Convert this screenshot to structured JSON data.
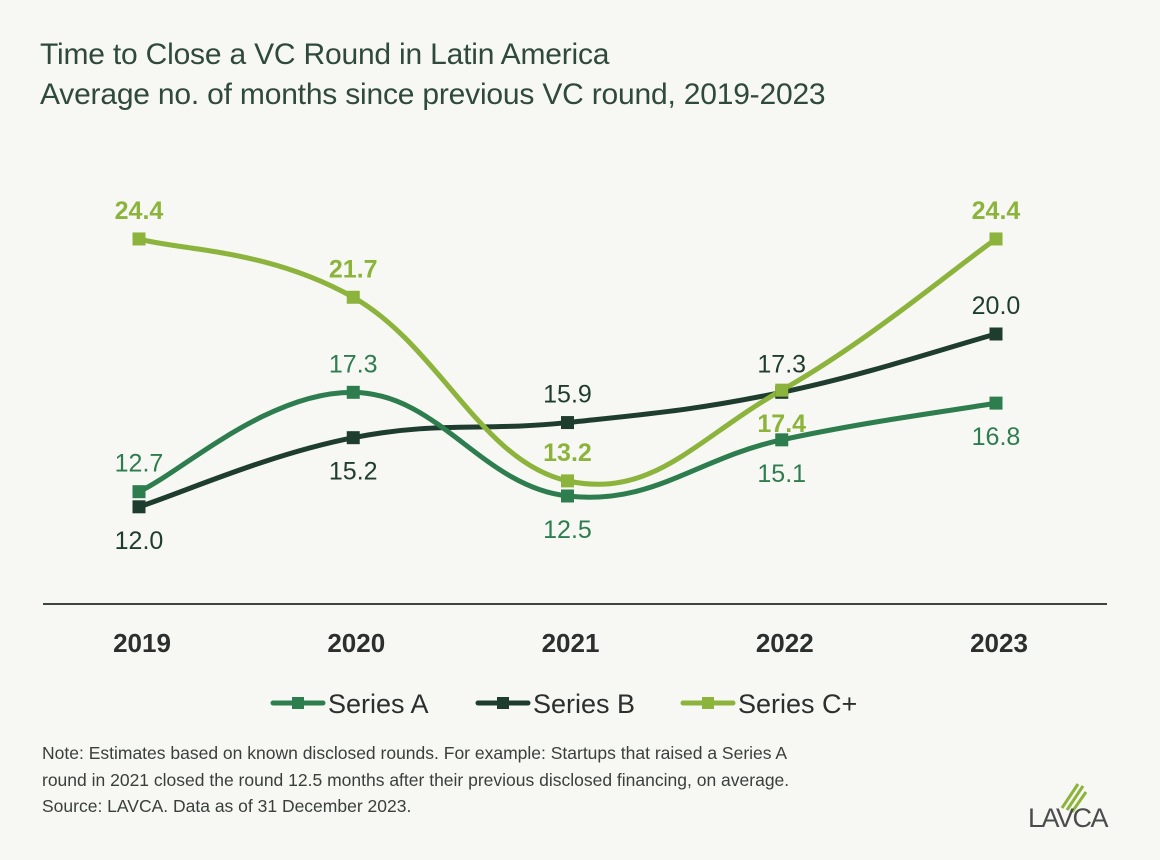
{
  "title": "Time to Close a VC Round in Latin America",
  "subtitle": "Average no. of months since previous VC round, 2019-2023",
  "notes": [
    "Note: Estimates based on known disclosed rounds. For example: Startups that raised a Series A",
    "round in 2021 closed the round 12.5 months after their previous disclosed financing, on average.",
    "Source: LAVCA. Data as of 31 December 2023."
  ],
  "logo": {
    "text": "LAVCA",
    "icon": "lavca-logo-icon"
  },
  "colors": {
    "series_a": "#2e7d4f",
    "series_b": "#1f3d2e",
    "series_c": "#8cb43c",
    "text": "#2f4a3c",
    "axis": "#3a3f3c"
  },
  "chart_data": {
    "type": "line",
    "title": "Time to Close a VC Round in Latin America",
    "subtitle": "Average no. of months since previous VC round, 2019-2023",
    "xlabel": "",
    "ylabel": "",
    "categories": [
      "2019",
      "2020",
      "2021",
      "2022",
      "2023"
    ],
    "ylim": [
      0,
      30
    ],
    "grid": false,
    "legend": "bottom-center",
    "series": [
      {
        "name": "Series A",
        "key": "series_a",
        "values": [
          12.7,
          17.3,
          12.5,
          15.1,
          16.8
        ],
        "labels": [
          "12.7",
          "17.3",
          "12.5",
          "15.1",
          "16.8"
        ],
        "label_pos": [
          "above",
          "above",
          "below",
          "below",
          "below"
        ]
      },
      {
        "name": "Series B",
        "key": "series_b",
        "values": [
          12.0,
          15.2,
          15.9,
          17.3,
          20.0
        ],
        "labels": [
          "12.0",
          "15.2",
          "15.9",
          "17.3",
          "20.0"
        ],
        "label_pos": [
          "below",
          "below",
          "above",
          "above",
          "above"
        ]
      },
      {
        "name": "Series C+",
        "key": "series_c",
        "values": [
          24.4,
          21.7,
          13.2,
          17.4,
          24.4
        ],
        "labels": [
          "24.4",
          "21.7",
          "13.2",
          "17.4",
          "24.4"
        ],
        "label_pos": [
          "above",
          "above",
          "above",
          "below",
          "above"
        ]
      }
    ]
  }
}
